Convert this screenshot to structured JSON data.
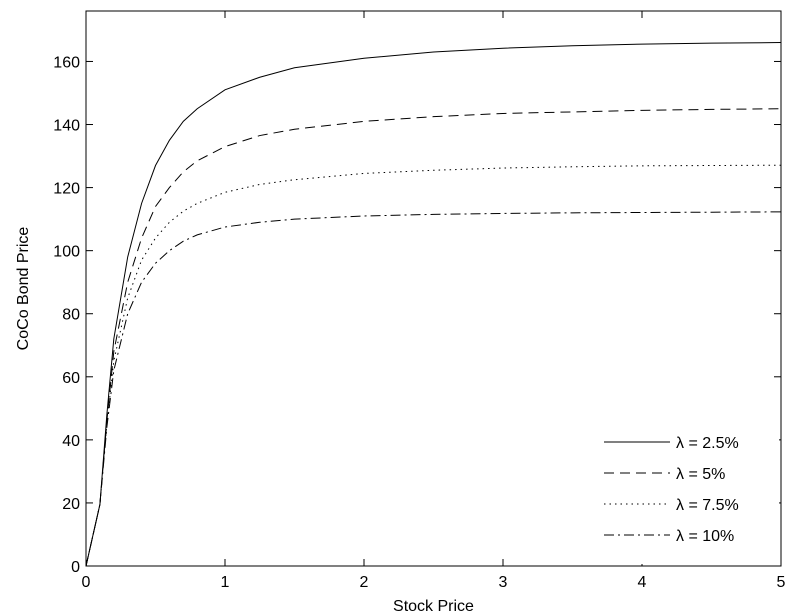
{
  "chart_data": {
    "type": "line",
    "title": "",
    "xlabel": "Stock Price",
    "ylabel": "CoCo Bond Price",
    "xlim": [
      0,
      5
    ],
    "ylim": [
      0,
      176
    ],
    "xticks": [
      0,
      1,
      2,
      3,
      4,
      5
    ],
    "yticks": [
      0,
      20,
      40,
      60,
      80,
      100,
      120,
      140,
      160
    ],
    "grid": false,
    "legend_position": "bottom-right",
    "series": [
      {
        "name": "λ = 2.5%",
        "dash": "solid",
        "x": [
          0,
          0.1,
          0.15,
          0.2,
          0.3,
          0.4,
          0.5,
          0.6,
          0.7,
          0.8,
          1.0,
          1.25,
          1.5,
          2.0,
          2.5,
          3.0,
          3.5,
          4.0,
          4.5,
          5.0
        ],
        "y": [
          0,
          19.5,
          48,
          72,
          98,
          115,
          127,
          135,
          141,
          145,
          151,
          155,
          158,
          161,
          163,
          164.2,
          165,
          165.5,
          165.8,
          166
        ]
      },
      {
        "name": "λ = 5%",
        "dash": "dash",
        "x": [
          0,
          0.1,
          0.15,
          0.2,
          0.3,
          0.4,
          0.5,
          0.6,
          0.7,
          0.8,
          1.0,
          1.25,
          1.5,
          2.0,
          2.5,
          3.0,
          3.5,
          4.0,
          4.5,
          5.0
        ],
        "y": [
          0,
          19.5,
          46,
          68,
          90,
          104,
          114,
          120,
          125,
          128.5,
          133,
          136.5,
          138.5,
          141,
          142.5,
          143.5,
          144,
          144.5,
          144.8,
          145
        ]
      },
      {
        "name": "λ = 7.5%",
        "dash": "dot",
        "x": [
          0,
          0.1,
          0.15,
          0.2,
          0.3,
          0.4,
          0.5,
          0.6,
          0.7,
          0.8,
          1.0,
          1.25,
          1.5,
          2.0,
          2.5,
          3.0,
          3.5,
          4.0,
          4.5,
          5.0
        ],
        "y": [
          0,
          19.5,
          45,
          65,
          85,
          97,
          104,
          109,
          112.5,
          115,
          118.5,
          121,
          122.5,
          124.5,
          125.5,
          126.2,
          126.6,
          126.9,
          127,
          127.1
        ]
      },
      {
        "name": "λ = 10%",
        "dash": "dashdot",
        "x": [
          0,
          0.1,
          0.15,
          0.2,
          0.3,
          0.4,
          0.5,
          0.6,
          0.7,
          0.8,
          1.0,
          1.25,
          1.5,
          2.0,
          2.5,
          3.0,
          3.5,
          4.0,
          4.5,
          5.0
        ],
        "y": [
          0,
          19.5,
          44,
          62,
          80,
          90,
          96,
          100,
          103,
          105,
          107.5,
          109,
          110,
          111,
          111.5,
          111.8,
          112,
          112.1,
          112.2,
          112.3
        ]
      }
    ]
  }
}
